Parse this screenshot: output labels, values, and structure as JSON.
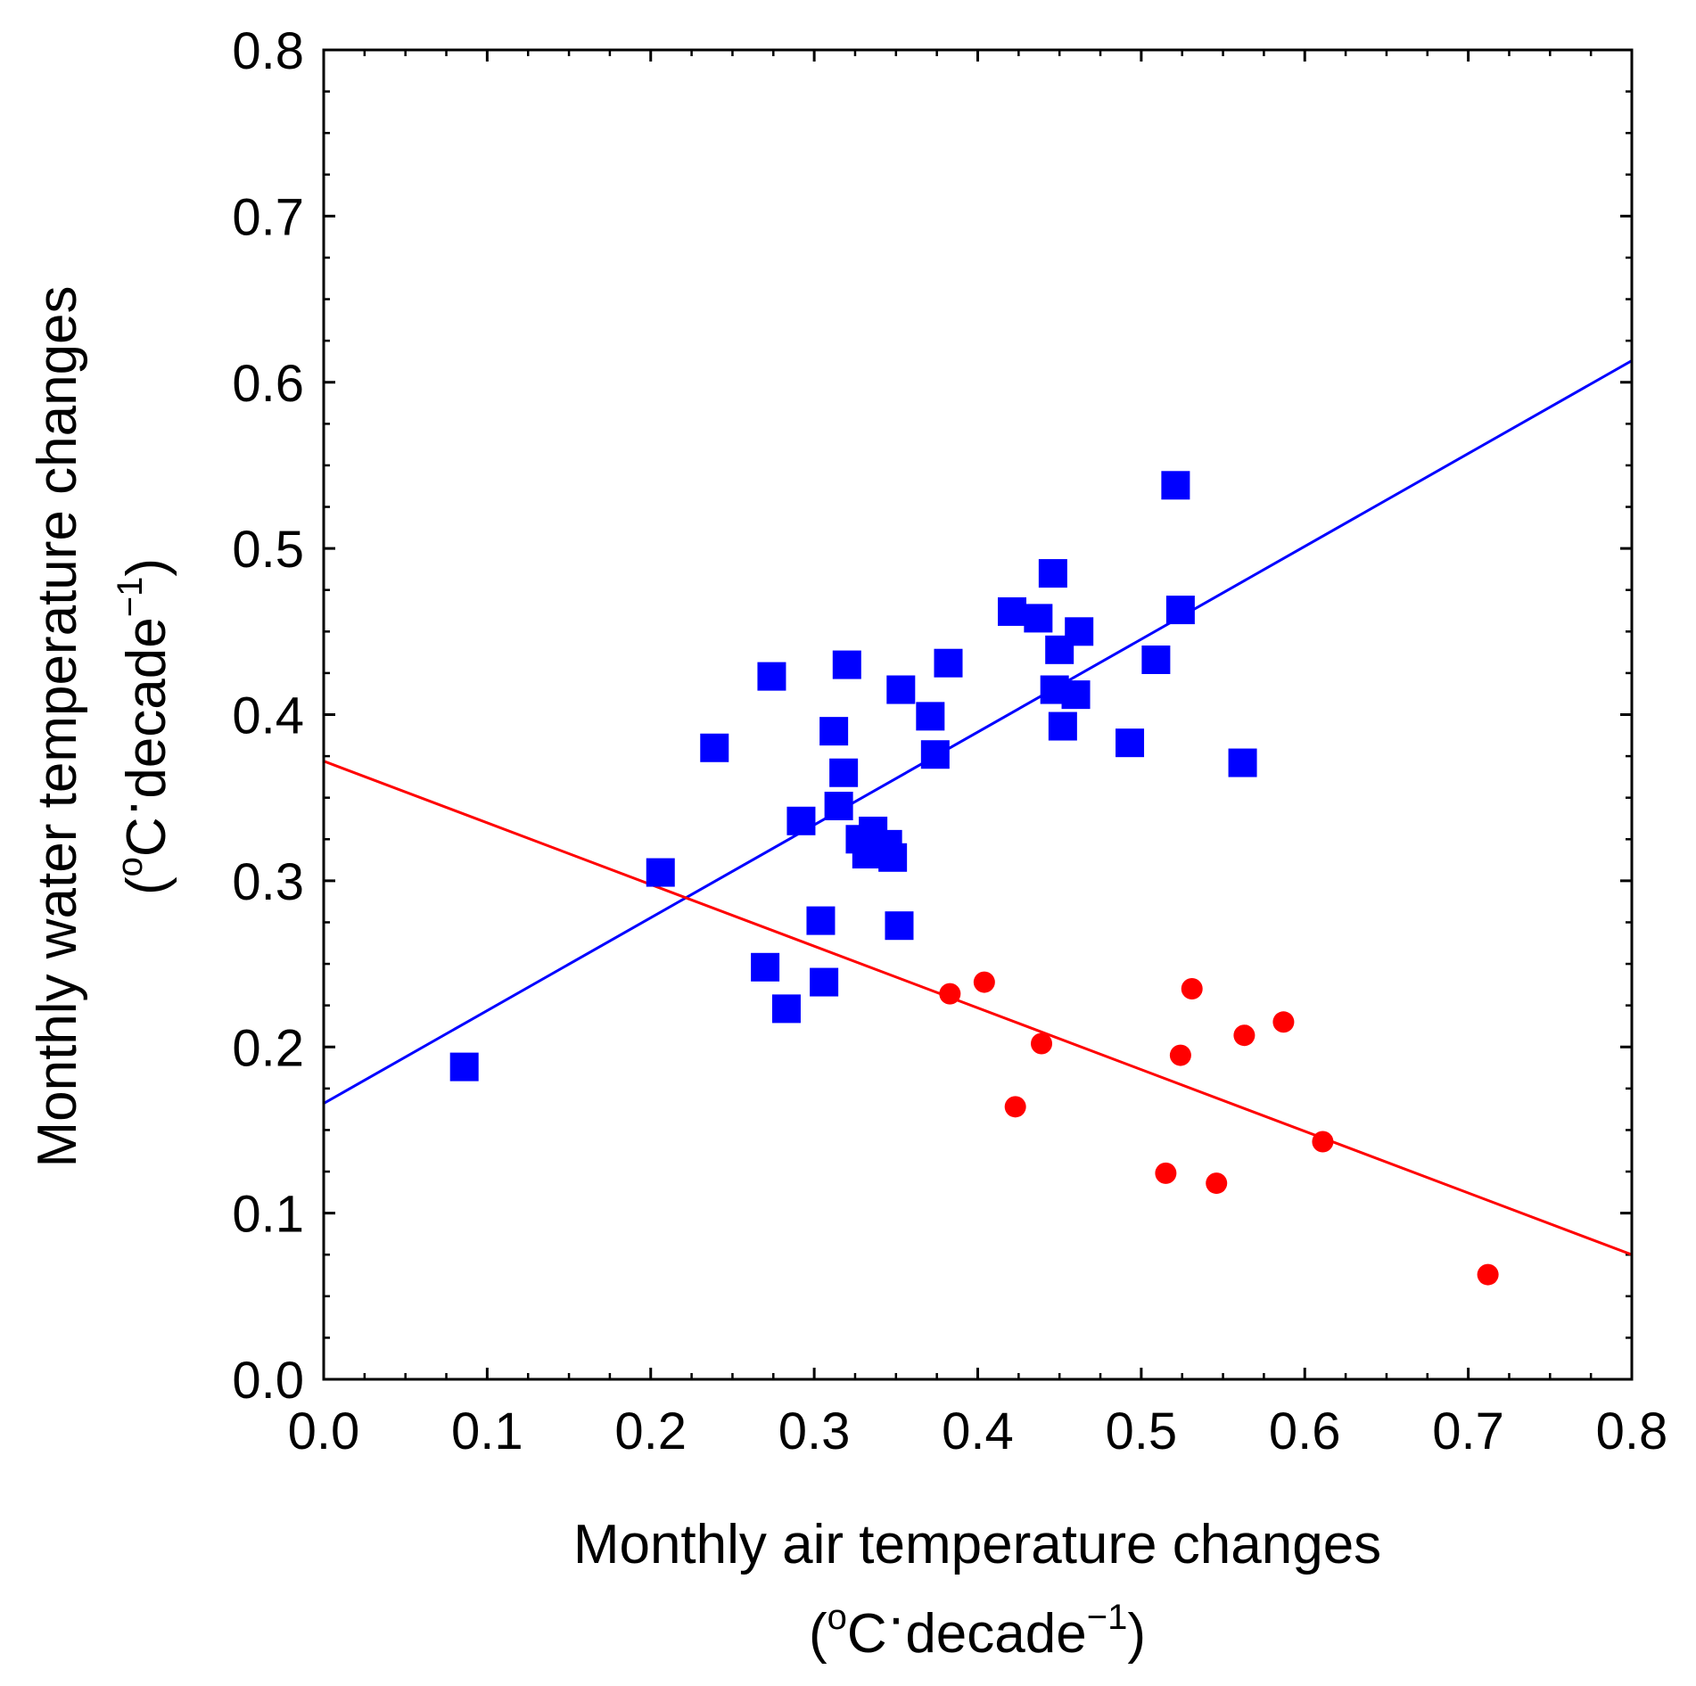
{
  "chart_data": {
    "type": "scatter",
    "xlabel": "Monthly air temperature changes",
    "xlabel_unit": {
      "open": "(",
      "deg": "o",
      "unit": "C",
      "dot": "·",
      "per": "decade",
      "exp": "−1",
      "close": ")"
    },
    "ylabel": "Monthly water temperature changes",
    "ylabel_unit": {
      "open": "(",
      "deg": "o",
      "unit": "C",
      "dot": "·",
      "per": "decade",
      "exp": "−1",
      "close": ")"
    },
    "xlim": [
      0.0,
      0.8
    ],
    "ylim": [
      0.0,
      0.8
    ],
    "x_ticks": [
      "0.0",
      "0.1",
      "0.2",
      "0.3",
      "0.4",
      "0.5",
      "0.6",
      "0.7",
      "0.8"
    ],
    "y_ticks": [
      "0.0",
      "0.1",
      "0.2",
      "0.3",
      "0.4",
      "0.5",
      "0.6",
      "0.7",
      "0.8"
    ],
    "grid": false,
    "series": [
      {
        "name": "blue squares",
        "marker": "square",
        "color": "#0000ff",
        "points": [
          [
            0.086,
            0.188
          ],
          [
            0.206,
            0.305
          ],
          [
            0.239,
            0.38
          ],
          [
            0.27,
            0.248
          ],
          [
            0.274,
            0.423
          ],
          [
            0.283,
            0.223
          ],
          [
            0.292,
            0.336
          ],
          [
            0.304,
            0.276
          ],
          [
            0.306,
            0.239
          ],
          [
            0.312,
            0.39
          ],
          [
            0.315,
            0.345
          ],
          [
            0.318,
            0.365
          ],
          [
            0.32,
            0.43
          ],
          [
            0.328,
            0.325
          ],
          [
            0.332,
            0.316
          ],
          [
            0.336,
            0.33
          ],
          [
            0.34,
            0.32
          ],
          [
            0.345,
            0.322
          ],
          [
            0.348,
            0.314
          ],
          [
            0.352,
            0.273
          ],
          [
            0.353,
            0.415
          ],
          [
            0.371,
            0.399
          ],
          [
            0.374,
            0.376
          ],
          [
            0.382,
            0.431
          ],
          [
            0.421,
            0.462
          ],
          [
            0.437,
            0.458
          ],
          [
            0.446,
            0.485
          ],
          [
            0.447,
            0.415
          ],
          [
            0.45,
            0.439
          ],
          [
            0.452,
            0.393
          ],
          [
            0.46,
            0.412
          ],
          [
            0.462,
            0.45
          ],
          [
            0.493,
            0.383
          ],
          [
            0.509,
            0.433
          ],
          [
            0.521,
            0.538
          ],
          [
            0.524,
            0.463
          ],
          [
            0.562,
            0.371
          ]
        ]
      },
      {
        "name": "red circles",
        "marker": "circle",
        "color": "#ff0000",
        "points": [
          [
            0.383,
            0.232
          ],
          [
            0.404,
            0.239
          ],
          [
            0.423,
            0.164
          ],
          [
            0.439,
            0.202
          ],
          [
            0.515,
            0.124
          ],
          [
            0.524,
            0.195
          ],
          [
            0.531,
            0.235
          ],
          [
            0.546,
            0.118
          ],
          [
            0.563,
            0.207
          ],
          [
            0.587,
            0.215
          ],
          [
            0.611,
            0.143
          ],
          [
            0.712,
            0.063
          ]
        ]
      }
    ],
    "fit_lines": [
      {
        "name": "blue fit",
        "color": "#0000ff",
        "x": [
          0.0,
          0.8
        ],
        "y": [
          0.166,
          0.613
        ]
      },
      {
        "name": "red fit",
        "color": "#ff0000",
        "x": [
          0.0,
          0.8
        ],
        "y": [
          0.372,
          0.075
        ]
      }
    ]
  }
}
